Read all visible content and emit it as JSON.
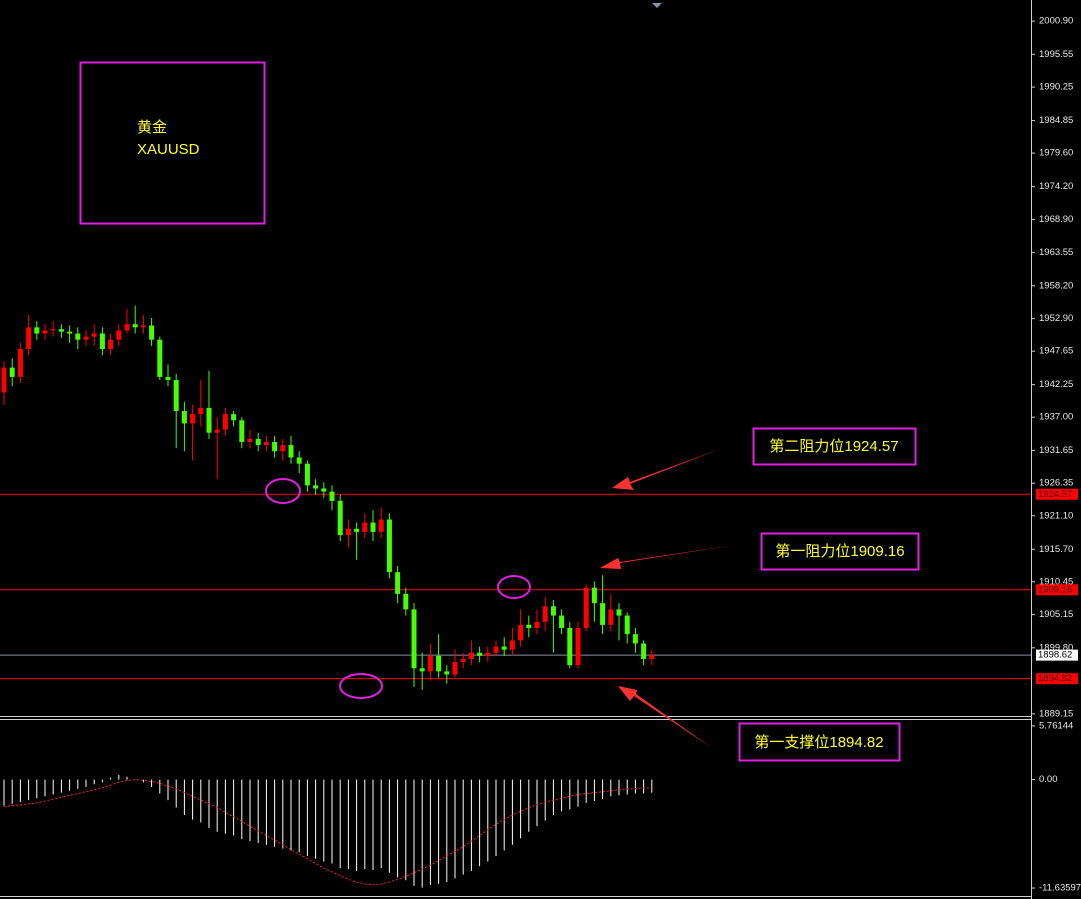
{
  "chart_data": [
    {
      "type": "candlestick",
      "title": "黄金",
      "subtitle": "XAUUSD",
      "categories": [
        null,
        null,
        null,
        null,
        null,
        null,
        null,
        null,
        null,
        null,
        null,
        null,
        null,
        null,
        null,
        null,
        null,
        null,
        null,
        null,
        null,
        null,
        null,
        null,
        null,
        null,
        null,
        null,
        null,
        null,
        null,
        null,
        null,
        null,
        null,
        null,
        null,
        null,
        null,
        null,
        null,
        null,
        null,
        null,
        null,
        null,
        null,
        null,
        null,
        null,
        null,
        null,
        null,
        null,
        null,
        null,
        null,
        null,
        null,
        null,
        null,
        null,
        null,
        null,
        null,
        null,
        null,
        null,
        null,
        null,
        null,
        null,
        null,
        null,
        null,
        null,
        null,
        null,
        null,
        null
      ],
      "open": [
        1941.0,
        1945.0,
        1943.5,
        1948.0,
        1951.5,
        1950.5,
        1951.0,
        1951.2,
        1950.8,
        1950.5,
        1949.5,
        1950.0,
        1950.5,
        1948.0,
        1949.5,
        1951.0,
        1952.0,
        1951.5,
        1951.8,
        1949.5,
        1943.5,
        1943.0,
        1938.0,
        1936.0,
        1937.5,
        1938.5,
        1934.5,
        1935.0,
        1937.5,
        1936.5,
        1933.0,
        1933.5,
        1932.5,
        1933.0,
        1931.5,
        1932.5,
        1930.5,
        1929.5,
        1926.0,
        1925.5,
        1925.0,
        1923.5,
        1918.0,
        1919.0,
        1918.5,
        1920.0,
        1918.5,
        1920.5,
        1912.0,
        1908.5,
        1906.0,
        1896.5,
        1896.0,
        1898.5,
        1896.0,
        1895.5,
        1897.5,
        1898.0,
        1899.0,
        1898.5,
        1899.0,
        1900.0,
        1899.5,
        1901.0,
        1903.5,
        1903.0,
        1904.0,
        1906.5,
        1905.0,
        1903.0,
        1897.0,
        1903.0,
        1909.5,
        1907.0,
        1903.5,
        1906.0,
        1905.0,
        1902.0,
        1900.5,
        1898.0
      ],
      "high": [
        1946.0,
        1946.5,
        1949.0,
        1953.5,
        1952.5,
        1952.0,
        1952.5,
        1952.0,
        1951.8,
        1951.5,
        1951.0,
        1952.0,
        1951.5,
        1950.5,
        1952.0,
        1954.5,
        1955.0,
        1953.5,
        1953.0,
        1950.0,
        1945.5,
        1944.0,
        1939.5,
        1939.0,
        1943.0,
        1944.5,
        1937.0,
        1938.5,
        1938.0,
        1937.0,
        1935.0,
        1934.5,
        1934.0,
        1934.0,
        1933.5,
        1934.0,
        1931.5,
        1930.0,
        1927.0,
        1926.5,
        1926.0,
        1924.5,
        1920.5,
        1920.0,
        1921.5,
        1922.0,
        1922.5,
        1921.5,
        1913.0,
        1909.5,
        1907.0,
        1899.0,
        1900.5,
        1902.0,
        1897.0,
        1899.5,
        1899.0,
        1901.0,
        1900.0,
        1900.0,
        1901.0,
        1901.5,
        1903.0,
        1906.0,
        1905.0,
        1906.0,
        1908.0,
        1907.5,
        1906.0,
        1904.0,
        1904.0,
        1910.0,
        1910.5,
        1911.5,
        1908.5,
        1907.0,
        1905.5,
        1903.0,
        1901.0,
        1899.5
      ],
      "low": [
        1939.0,
        1942.0,
        1942.5,
        1947.0,
        1949.5,
        1949.5,
        1950.0,
        1949.8,
        1949.0,
        1948.0,
        1948.5,
        1948.5,
        1947.0,
        1947.0,
        1948.5,
        1950.5,
        1950.5,
        1950.5,
        1948.5,
        1943.0,
        1942.0,
        1932.0,
        1931.5,
        1930.0,
        1935.5,
        1933.5,
        1927.0,
        1934.0,
        1935.5,
        1932.0,
        1932.0,
        1931.5,
        1931.5,
        1930.5,
        1930.0,
        1929.5,
        1928.0,
        1925.0,
        1924.5,
        1924.0,
        1922.0,
        1917.0,
        1916.0,
        1914.0,
        1917.5,
        1917.0,
        1917.5,
        1911.0,
        1907.0,
        1905.0,
        1893.5,
        1893.0,
        1894.5,
        1895.0,
        1894.0,
        1895.0,
        1896.5,
        1897.0,
        1897.5,
        1897.5,
        1898.5,
        1898.5,
        1898.5,
        1900.0,
        1901.5,
        1902.0,
        1902.5,
        1899.0,
        1902.0,
        1896.5,
        1896.5,
        1902.5,
        1904.0,
        1902.0,
        1902.5,
        1901.0,
        1900.5,
        1899.0,
        1897.0,
        1897.0
      ],
      "close": [
        1945.0,
        1943.5,
        1948.0,
        1951.5,
        1950.5,
        1951.0,
        1951.2,
        1950.8,
        1950.5,
        1949.5,
        1950.0,
        1950.5,
        1948.0,
        1949.5,
        1951.0,
        1952.0,
        1951.5,
        1951.8,
        1949.5,
        1943.5,
        1943.0,
        1938.0,
        1936.0,
        1937.5,
        1938.5,
        1934.5,
        1935.0,
        1937.5,
        1936.5,
        1933.0,
        1933.5,
        1932.5,
        1933.0,
        1931.5,
        1932.5,
        1930.5,
        1929.5,
        1926.0,
        1925.5,
        1925.0,
        1923.5,
        1918.0,
        1919.0,
        1918.5,
        1920.0,
        1918.5,
        1920.5,
        1912.0,
        1908.5,
        1906.0,
        1896.5,
        1896.0,
        1898.5,
        1896.0,
        1895.5,
        1897.5,
        1898.0,
        1899.0,
        1898.5,
        1899.0,
        1900.0,
        1899.5,
        1901.0,
        1903.5,
        1903.0,
        1904.0,
        1906.5,
        1905.0,
        1903.0,
        1897.0,
        1903.0,
        1909.5,
        1907.0,
        1903.5,
        1906.0,
        1905.0,
        1902.0,
        1900.5,
        1898.0,
        1898.62
      ],
      "up_color": "#ff0000",
      "down_color": "#44ff00",
      "ylim": [
        1888.8,
        2004.3
      ],
      "yticks": [
        {
          "value": 2000.9,
          "label": "2000.90"
        },
        1995.55,
        1990.25,
        1984.85,
        {
          "value": 1979.6,
          "label": "1979.60"
        },
        {
          "value": 1974.2,
          "label": "1974.20"
        },
        {
          "value": 1968.9,
          "label": "1968.90"
        },
        1963.55,
        {
          "value": 1958.2,
          "label": "1958.20"
        },
        {
          "value": 1952.9,
          "label": "1952.90"
        },
        1947.65,
        1942.25,
        {
          "value": 1937,
          "label": "1937.00"
        },
        1931.65,
        1926.35,
        {
          "value": 1921.1,
          "label": "1921.10"
        },
        {
          "value": 1915.7,
          "label": "1915.70"
        },
        1910.45,
        1905.15,
        {
          "value": 1899.8,
          "label": "1899.80"
        },
        1889.15
      ],
      "price_lines": [
        {
          "value": 1924.57,
          "label": "1924.57",
          "color": "#ff0000"
        },
        {
          "value": 1909.16,
          "label": "1909.16",
          "color": "#ff0000"
        },
        {
          "value": 1898.62,
          "label": "1898.62",
          "color": "#8a8fa8"
        },
        {
          "value": 1894.82,
          "label": "1894.82",
          "color": "#ff0000"
        }
      ],
      "annotations": [
        "第二阻力位1924.57",
        "第一阻力位1909.16",
        "第一支撑位1894.82"
      ]
    },
    {
      "type": "macd",
      "categories": [
        null,
        null,
        null,
        null,
        null,
        null,
        null,
        null,
        null,
        null,
        null,
        null,
        null,
        null,
        null,
        null,
        null,
        null,
        null,
        null,
        null,
        null,
        null,
        null,
        null,
        null,
        null,
        null,
        null,
        null,
        null,
        null,
        null,
        null,
        null,
        null,
        null,
        null,
        null,
        null,
        null,
        null,
        null,
        null,
        null,
        null,
        null,
        null,
        null,
        null,
        null,
        null,
        null,
        null,
        null,
        null,
        null,
        null,
        null,
        null,
        null,
        null,
        null,
        null,
        null,
        null,
        null,
        null,
        null,
        null,
        null,
        null,
        null,
        null,
        null,
        null,
        null,
        null,
        null,
        null
      ],
      "histogram": {
        "color": "#ffffff",
        "values": [
          -2.8,
          -2.6,
          -2.4,
          -2.2,
          -2.0,
          -1.8,
          -1.6,
          -1.4,
          -1.2,
          -1.0,
          -0.8,
          -0.5,
          -0.3,
          0.2,
          0.5,
          0.3,
          0.0,
          -0.3,
          -0.8,
          -1.5,
          -2.2,
          -3.0,
          -3.8,
          -4.3,
          -4.6,
          -5.2,
          -5.6,
          -5.8,
          -6.0,
          -6.4,
          -6.6,
          -6.8,
          -7.0,
          -7.2,
          -7.4,
          -7.6,
          -7.8,
          -8.2,
          -8.5,
          -8.8,
          -9.0,
          -9.5,
          -9.6,
          -9.8,
          -9.6,
          -9.7,
          -9.5,
          -10.0,
          -10.5,
          -10.8,
          -11.4,
          -11.6,
          -11.3,
          -11.2,
          -11.0,
          -10.6,
          -10.2,
          -9.8,
          -9.3,
          -8.8,
          -8.2,
          -7.6,
          -7.0,
          -6.3,
          -5.6,
          -5.0,
          -4.4,
          -3.8,
          -3.4,
          -3.2,
          -2.9,
          -2.5,
          -2.3,
          -2.1,
          -1.8,
          -1.7,
          -1.6,
          -1.5,
          -1.5,
          -1.4
        ]
      },
      "signal": {
        "color": "#ff2020",
        "values": [
          -2.9,
          -2.8,
          -2.7,
          -2.6,
          -2.5,
          -2.3,
          -2.1,
          -1.9,
          -1.7,
          -1.5,
          -1.3,
          -1.1,
          -0.9,
          -0.6,
          -0.3,
          -0.1,
          0.0,
          -0.1,
          -0.2,
          -0.4,
          -0.7,
          -1.0,
          -1.4,
          -1.8,
          -2.2,
          -2.6,
          -3.0,
          -3.5,
          -4.0,
          -4.5,
          -5.0,
          -5.5,
          -6.0,
          -6.5,
          -7.0,
          -7.5,
          -8.0,
          -8.5,
          -9.0,
          -9.5,
          -9.9,
          -10.3,
          -10.7,
          -11.0,
          -11.2,
          -11.3,
          -11.2,
          -11.0,
          -10.7,
          -10.4,
          -10.0,
          -9.6,
          -9.2,
          -8.7,
          -8.2,
          -7.7,
          -7.2,
          -6.6,
          -6.0,
          -5.4,
          -4.8,
          -4.3,
          -3.8,
          -3.4,
          -3.0,
          -2.7,
          -2.4,
          -2.2,
          -2.0,
          -1.8,
          -1.6,
          -1.5,
          -1.4,
          -1.3,
          -1.2,
          -1.1,
          -1.0,
          -1.0,
          -0.9,
          -0.9
        ]
      },
      "ylim": [
        -12.6,
        6.5
      ],
      "yticks": [
        5.76144,
        {
          "value": 0,
          "label": "0.00"
        },
        -11.63597
      ]
    }
  ]
}
